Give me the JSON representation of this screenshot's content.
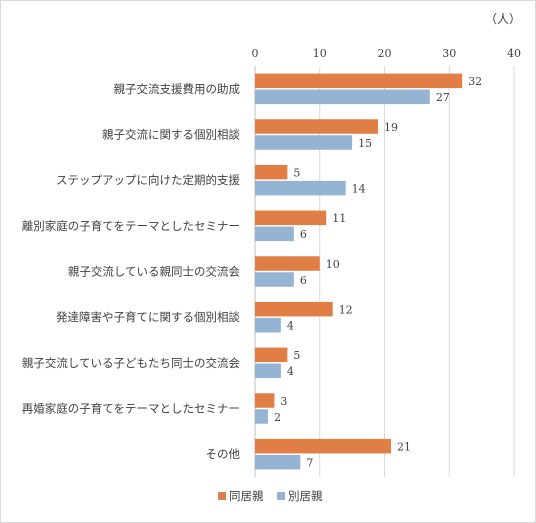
{
  "chart_data": {
    "type": "bar",
    "orientation": "horizontal",
    "unit_label": "（人）",
    "categories": [
      "親子交流支援費用の助成",
      "親子交流に関する個別相談",
      "ステップアップに向けた定期的支援",
      "離別家庭の子育てをテーマとしたセミナー",
      "親子交流している親同士の交流会",
      "発達障害や子育てに関する個別相談",
      "親子交流している子どもたち同士の交流会",
      "再婚家庭の子育てをテーマとしたセミナー",
      "その他"
    ],
    "series": [
      {
        "name": "同居親",
        "color": "#E07E45",
        "values": [
          32,
          19,
          5,
          11,
          10,
          12,
          5,
          3,
          21
        ]
      },
      {
        "name": "別居親",
        "color": "#95B4D4",
        "values": [
          27,
          15,
          14,
          6,
          6,
          4,
          4,
          2,
          7
        ]
      }
    ],
    "xlim": [
      0,
      40
    ],
    "xticks": [
      "0",
      "10",
      "20",
      "30",
      "40"
    ],
    "grid": true,
    "legend_position": "bottom",
    "data_labels": true
  }
}
